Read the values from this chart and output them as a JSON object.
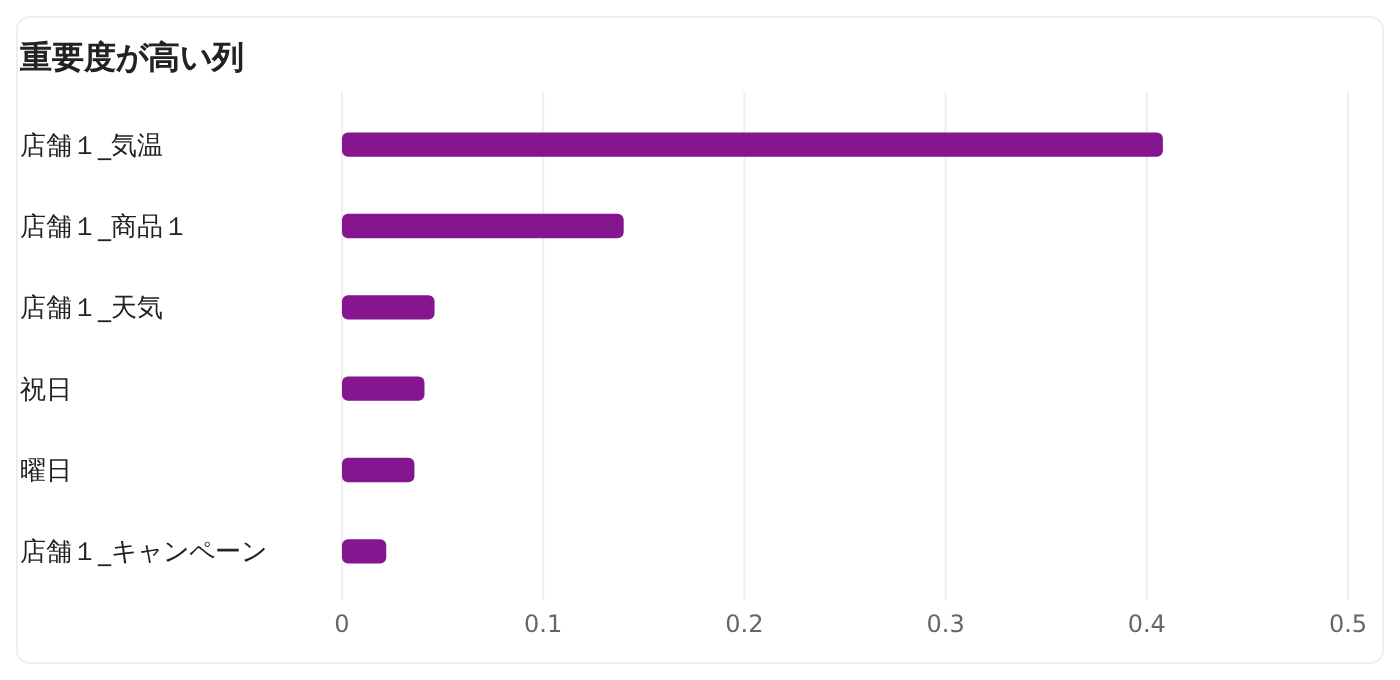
{
  "chart_data": {
    "type": "bar",
    "orientation": "horizontal",
    "title": "重要度が高い列",
    "categories": [
      "店舗１_気温",
      "店舗１_商品１",
      "店舗１_天気",
      "祝日",
      "曜日",
      "店舗１_キャンペーン"
    ],
    "values": [
      0.408,
      0.14,
      0.046,
      0.041,
      0.036,
      0.022
    ],
    "color": "#85168f",
    "xlim": [
      0,
      0.5
    ],
    "xticks": [
      0,
      0.1,
      0.2,
      0.3,
      0.4,
      0.5
    ],
    "grid": "x"
  }
}
